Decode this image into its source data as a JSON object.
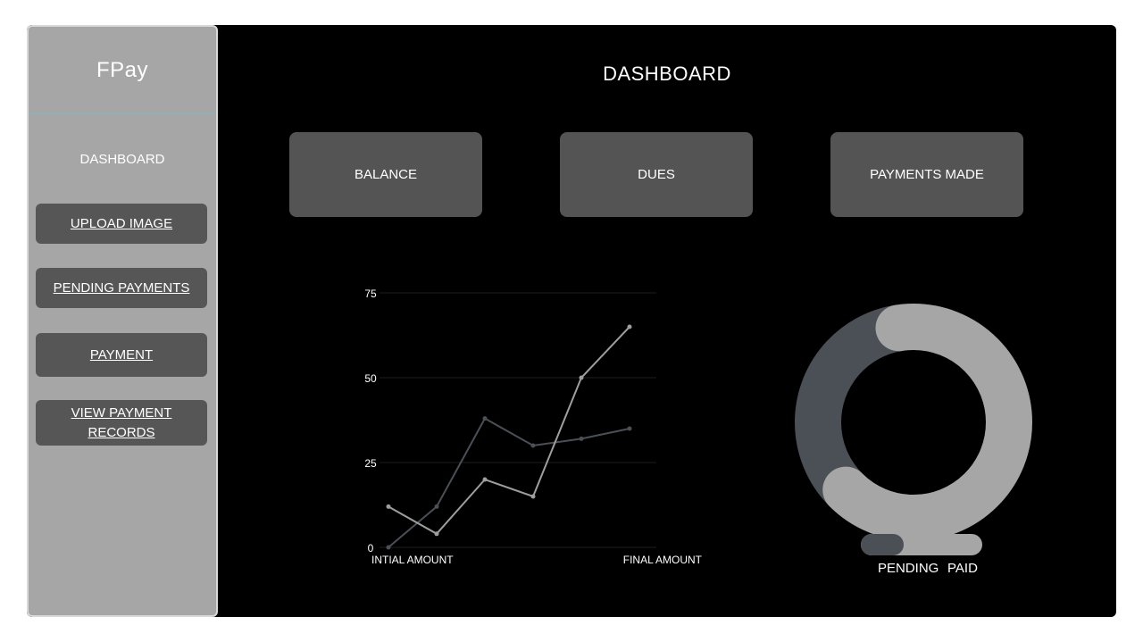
{
  "app": {
    "brand": "FPay"
  },
  "sidebar": {
    "active": "DASHBOARD",
    "items": [
      {
        "label": "UPLOAD IMAGE"
      },
      {
        "label": "PENDING PAYMENTS"
      },
      {
        "label": "PAYMENT"
      },
      {
        "label": "VIEW PAYMENT RECORDS"
      }
    ]
  },
  "main": {
    "title": "DASHBOARD",
    "cards": [
      {
        "label": "BALANCE"
      },
      {
        "label": "DUES"
      },
      {
        "label": "PAYMENTS MADE"
      }
    ]
  },
  "colors": {
    "sidebar_bg": "#a6a6a6",
    "series_dark": "#4b4f56",
    "series_light": "#9e9e9e",
    "card_bg": "#545454"
  },
  "chart_data": [
    {
      "type": "line",
      "xlabel_left": "INTIAL AMOUNT",
      "xlabel_right": "FINAL AMOUNT",
      "yticks": [
        "0",
        "25",
        "50",
        "75"
      ],
      "ylim": [
        0,
        75
      ],
      "x": [
        1,
        2,
        3,
        4,
        5,
        6
      ],
      "series": [
        {
          "values": [
            0,
            12,
            38,
            30,
            32,
            35
          ],
          "color": "#4b4f56"
        },
        {
          "values": [
            12,
            4,
            20,
            15,
            50,
            65
          ],
          "color": "#9e9e9e"
        }
      ],
      "grid": true
    },
    {
      "type": "pie",
      "style": "donut",
      "labels": [
        "PENDING",
        "PAID"
      ],
      "values": [
        35,
        65
      ],
      "colors": [
        "#4b4f56",
        "#a6a6a6"
      ]
    }
  ]
}
